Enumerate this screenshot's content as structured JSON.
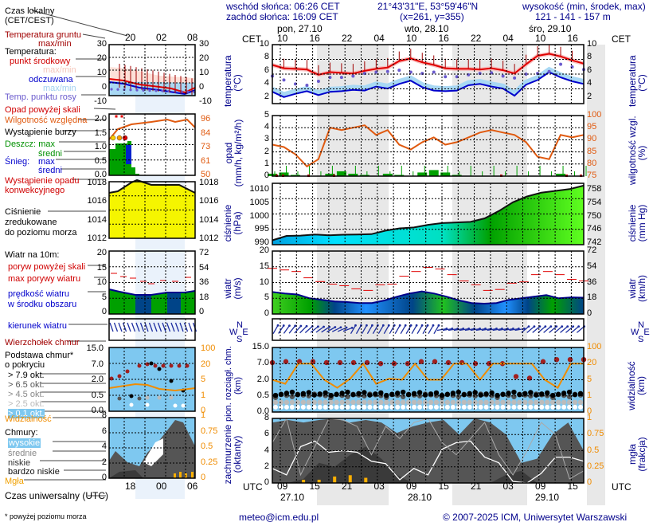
{
  "header": {
    "sunrise": "wschód słońca: 06:26 CET",
    "sunset": "zachód słońca: 16:09 CET",
    "coords": "21°43'31\"E, 53°59'46\"N",
    "grid": "(x=261,  y=355)",
    "elevation_label": "wysokość (min, środek, max)",
    "elevation_value": "121 - 141 - 157 m"
  },
  "timeline": {
    "tz_left": "CET",
    "tz_right": "CET",
    "utc_left": "UTC",
    "utc_right": "UTC",
    "days": [
      "pon, 27.10",
      "wto, 28.10",
      "śro, 29.10"
    ],
    "cet_hours": [
      "10",
      "16",
      "22",
      "04",
      "10",
      "16",
      "22",
      "04",
      "10",
      "16"
    ],
    "utc_hours": [
      "09",
      "15",
      "21",
      "03",
      "09",
      "15",
      "21",
      "03",
      "09",
      "15"
    ],
    "utc_dates": [
      "27.10",
      "28.10",
      "29.10"
    ]
  },
  "legend": {
    "local_time": "Czas lokalny",
    "local_time_sub": "(CET/CEST)",
    "local_hours": [
      "20",
      "02",
      "08"
    ],
    "ground_temp": "Temperatura gruntu",
    "ground_temp_sub": "max/min",
    "temperature": "Temperatura:",
    "mid_point": "punkt środkowy",
    "maxmin1": "max/min",
    "feels_like": "odczuwana",
    "maxmin2": "max/min",
    "dew_point": "Temp. punktu rosy",
    "temp_ticks": [
      "30",
      "20",
      "10",
      "0",
      "-10"
    ],
    "precip_over": "Opad powyżej skali",
    "humidity": "Wilgotność względna",
    "storm": "Wystąpienie burzy",
    "rain": "Deszcz:",
    "rain_max": "max",
    "rain_avg": "średni",
    "snow": "Śnieg:",
    "snow_max": "max",
    "snow_avg": "średni",
    "convective": "Wystąpienie opadu",
    "convective_sub": "konwekcyjnego",
    "precip_ticks": [
      "2.0",
      "1.5",
      "1.0",
      "0.5",
      "0.0"
    ],
    "humid_ticks": [
      "96",
      "84",
      "73",
      "61",
      "50"
    ],
    "pressure": "Ciśnienie",
    "pressure_sub1": "zredukowane",
    "pressure_sub2": "do poziomu morza",
    "pressure_ticks": [
      "1018",
      "1016",
      "1014",
      "1012"
    ],
    "wind10": "Wiatr na 10m:",
    "gust_over": "poryw powyżej skali",
    "gust_max": "max porywy wiatru",
    "wind_speed": "prędkość wiatru",
    "wind_speed_sub": "w środku obszaru",
    "wind_ticks_ms": [
      "20",
      "15",
      "10",
      "5",
      "0"
    ],
    "wind_ticks_kmh": [
      "72",
      "54",
      "36",
      "18",
      "0"
    ],
    "wind_dir": "kierunek wiatru",
    "cloud_top": "Wierzchołek chmur",
    "cloud_base": "Podstawa chmur*",
    "cloud_base_sub": "o pokryciu",
    "okt": [
      "> 7.9 okt.",
      "> 6.5 okt.",
      "> 4.5 okt.",
      "> 2.5 okt.",
      "> 0.1 okt."
    ],
    "cloud_ticks": [
      "15.0",
      "7.0",
      "2.0",
      "0.5",
      "0.0"
    ],
    "vis_ticks": [
      "100",
      "20",
      "5",
      "1",
      "0"
    ],
    "visibility": "Widzialność",
    "clouds": "Chmury:",
    "high": "wysokie",
    "mid": "średnie",
    "low": "niskie",
    "very_low": "bardzo niskie",
    "fog": "Mgła",
    "cover_ticks": [
      "8",
      "6",
      "4",
      "2",
      "0"
    ],
    "fog_ticks": [
      "1",
      "0.75",
      "0.5",
      "0.25",
      "0"
    ],
    "utc_label": "Czas uniwersalny (UTC)",
    "utc_hours": [
      "18",
      "00",
      "06"
    ],
    "footnote": "* powyżej poziomu morza"
  },
  "axes": {
    "temp": {
      "label": "temperatura",
      "unit": "(°C)",
      "ticks": [
        "10",
        "8",
        "6",
        "4",
        "2"
      ]
    },
    "precip": {
      "label": "opad",
      "unit": "(mm/h, kg/m²/h)",
      "ticks": [
        "5",
        "4",
        "3",
        "2",
        "1",
        "0"
      ]
    },
    "humidity": {
      "label": "wilgotność wzgl.",
      "unit": "(%)",
      "ticks": [
        "100",
        "95",
        "90",
        "85",
        "80",
        "75"
      ]
    },
    "pressure": {
      "label": "ciśnienie",
      "unit": "(hPa)",
      "ticks": [
        "1010",
        "1005",
        "1000",
        "995",
        "990"
      ]
    },
    "pressure_mm": {
      "label": "ciśnienie",
      "unit": "(mm Hg)",
      "ticks": [
        "758",
        "754",
        "750",
        "746",
        "742"
      ]
    },
    "wind": {
      "label": "wiatr",
      "unit": "(m/s)",
      "ticks": [
        "20",
        "15",
        "10",
        "5",
        "0"
      ]
    },
    "wind_kmh": {
      "label": "wiatr",
      "unit": "(km/h)",
      "ticks": [
        "72",
        "54",
        "36",
        "18",
        "0"
      ]
    },
    "compass": {
      "n": "N",
      "w": "W",
      "s": "S",
      "e": "E"
    },
    "cloudbase": {
      "label": "pion. rozciągł. chm.",
      "unit": "(km)",
      "ticks": [
        "15.0",
        "7.0",
        "2.0",
        "0.5",
        "0.0"
      ]
    },
    "vis": {
      "label": "widzialność",
      "unit": "(km)",
      "ticks": [
        "100",
        "20",
        "5",
        "1",
        "0"
      ]
    },
    "cover": {
      "label": "zachmurzenie",
      "unit": "(oktanty)",
      "ticks": [
        "8",
        "6",
        "4",
        "2",
        "0"
      ]
    },
    "fog": {
      "label": "mgła",
      "unit": "(frakcja)",
      "ticks": [
        "1",
        "0.75",
        "0.5",
        "0.25",
        "0"
      ]
    }
  },
  "footer": {
    "email": "meteo@icm.edu.pl",
    "copyright": "© 2007-2025 ICM, Uniwersytet Warszawski"
  },
  "chart_data": [
    {
      "type": "line",
      "title": "temperatura (°C)",
      "x_hours_cet_start": "27.10 08:00",
      "step_hours": 3,
      "ylim": [
        1,
        10
      ],
      "series": [
        {
          "name": "temperatura",
          "color": "#e00000",
          "values": [
            6.9,
            6.4,
            6.3,
            6.2,
            5.4,
            5.8,
            5.7,
            5.6,
            6.0,
            6.3,
            6.5,
            7.5,
            7.9,
            7.3,
            6.9,
            6.4,
            6.3,
            6.3,
            6.2,
            6.4,
            6.1,
            5.6,
            7.0,
            8.3,
            8.6,
            8.2,
            7.6,
            7.1
          ]
        },
        {
          "name": "temperatura odczuwana",
          "color": "#0000cc",
          "values": [
            2.8,
            2.0,
            2.5,
            2.9,
            2.3,
            2.8,
            2.9,
            3.1,
            3.0,
            3.6,
            3.3,
            4.0,
            4.5,
            3.5,
            3.0,
            2.9,
            3.0,
            3.8,
            4.0,
            3.6,
            3.3,
            2.2,
            3.9,
            4.6,
            5.8,
            5.0,
            4.4,
            4.0
          ]
        },
        {
          "name": "temp. punktu rosy",
          "color": "#6a5acd",
          "values": [
            5.2,
            4.6,
            4.0,
            3.8,
            4.4,
            5.0,
            5.0,
            5.2,
            5.6,
            5.8,
            5.9,
            6.1,
            5.8,
            5.6,
            5.8,
            5.1,
            5.1,
            5.4,
            5.6,
            5.7,
            5.2,
            4.9,
            5.5,
            5.6,
            5.9,
            7.0,
            6.6,
            6.2
          ]
        }
      ]
    },
    {
      "type": "bar",
      "title": "opad (mm/h) / wilgotność (%)",
      "ylim": [
        0,
        5
      ],
      "y2lim": [
        75,
        100
      ],
      "series": [
        {
          "name": "opad średni",
          "color": "#00a000",
          "values": [
            0.2,
            0.3,
            0.1,
            0.0,
            0.0,
            0.2,
            0.4,
            0.2,
            0.1,
            0.0,
            0.2,
            0.1,
            0.0,
            0.3,
            0.5,
            0.3,
            0.1,
            0.0,
            0.0,
            0.0,
            0.0,
            0.0,
            0.0,
            0.0,
            0.0,
            0.2,
            0.0,
            0.0
          ]
        },
        {
          "name": "wilgotność względna",
          "color": "#e05a10",
          "values": [
            88,
            87,
            84,
            79,
            82,
            95,
            94,
            95,
            96,
            92,
            94,
            88,
            86,
            89,
            91,
            88,
            89,
            91,
            93,
            94,
            93,
            92,
            89,
            83,
            82,
            92,
            91,
            92
          ]
        }
      ]
    },
    {
      "type": "area",
      "title": "ciśnienie (hPa)",
      "ylim": [
        990,
        1011
      ],
      "series": [
        {
          "name": "ciśnienie",
          "color": "#000000",
          "values": [
            991.5,
            993.0,
            993.1,
            993.5,
            993.2,
            993.4,
            993.5,
            993.6,
            994.8,
            995.6,
            995.9,
            996.8,
            997.4,
            997.6,
            997.8,
            999.0,
            1001.5,
            1004.5,
            1006.5,
            1007.8,
            1008.4,
            1009.0,
            1010.2
          ]
        }
      ]
    },
    {
      "type": "line",
      "title": "wiatr (m/s)",
      "ylim": [
        0,
        20
      ],
      "series": [
        {
          "name": "max porywy",
          "color": "#e00000",
          "values": [
            14.5,
            14.0,
            13.5,
            11.5,
            10.3,
            9.5,
            9.0,
            8.0,
            7.5,
            9.3,
            9.5,
            12.0,
            13.5,
            14.8,
            14.3,
            12.5,
            10.5,
            9.3,
            7.5,
            7.8,
            9.8,
            10.2,
            12.5,
            13.5,
            12.5,
            11.0,
            10.5
          ]
        },
        {
          "name": "prędkość wiatru",
          "color": "#00008b",
          "values": [
            7.0,
            6.5,
            6.2,
            5.0,
            4.5,
            4.0,
            3.8,
            3.5,
            3.5,
            4.3,
            5.5,
            6.5,
            7.2,
            6.5,
            5.5,
            4.3,
            3.5,
            3.3,
            3.5,
            4.5,
            5.0,
            5.5,
            6.0,
            5.0,
            5.3,
            5.2
          ]
        }
      ]
    },
    {
      "type": "scatter",
      "title": "podstawa/wierzchołek chmur (km), widzialność (km)",
      "ylim": [
        0,
        15
      ],
      "series": [
        {
          "name": "wierzchołek chmur",
          "color": "#a02020",
          "values": [
            7.5,
            8,
            8,
            8,
            7.5,
            7.5,
            7.5,
            7.5,
            7,
            7,
            7,
            8,
            8,
            7.5,
            7.5,
            7,
            7,
            7,
            3,
            2.5,
            8,
            9,
            9,
            9
          ]
        },
        {
          "name": "widzialność",
          "color": "#f08c00",
          "values": [
            5,
            4,
            20,
            20,
            5,
            3,
            6,
            20,
            4,
            6,
            5,
            20,
            5,
            5,
            20,
            20,
            5,
            20,
            20,
            20,
            20,
            5,
            3,
            20,
            20
          ]
        }
      ]
    },
    {
      "type": "area",
      "title": "zachmurzenie (oktanty) / mgła (frakcja)",
      "ylim": [
        0,
        8
      ],
      "y2lim": [
        0,
        1
      ],
      "series": [
        {
          "name": "chmury wysokie",
          "color": "#7ec8f0",
          "values": [
            8,
            8,
            8,
            8,
            8,
            8,
            8,
            8,
            8,
            8,
            8,
            8,
            8,
            8,
            8,
            8,
            8,
            8,
            8,
            8,
            8
          ]
        },
        {
          "name": "chmury średnie",
          "color": "#555555",
          "values": [
            7.5,
            7.8,
            7.5,
            7.8,
            8,
            7.5,
            7.8,
            7.5,
            6.2,
            7,
            7.5,
            7.8,
            6,
            8,
            7.5,
            6,
            2.5,
            3,
            6,
            7.5,
            4
          ]
        },
        {
          "name": "chmury niskie",
          "color": "#3a3a3a",
          "values": [
            0,
            0,
            0.5,
            2.5,
            2,
            3.5,
            4.5,
            3,
            1,
            0,
            0,
            0,
            0,
            0,
            0,
            1,
            1.5,
            0,
            0,
            0,
            0
          ]
        },
        {
          "name": "mgła",
          "color": "#ffb000",
          "values": [
            0,
            0,
            0.05,
            0.05,
            0.1,
            0.12,
            0.08,
            0,
            0,
            0,
            0,
            0,
            0,
            0,
            0,
            0,
            0,
            0,
            0,
            0,
            0
          ]
        }
      ]
    }
  ]
}
